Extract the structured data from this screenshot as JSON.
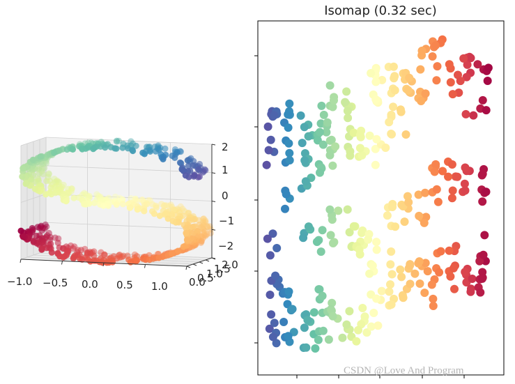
{
  "figure": {
    "watermark": "CSDN @Love And Program"
  },
  "chart_data": [
    {
      "type": "scatter3d",
      "title": "",
      "dataset": "S-curve",
      "colormap": "Spectral",
      "axes": {
        "x": {
          "ticks": [
            -1.0,
            -0.5,
            0.0,
            0.5,
            1.0
          ],
          "tick_labels": [
            "−1.0",
            "−0.5",
            "0.0",
            "0.5",
            "1.0"
          ],
          "range": [
            -1,
            1
          ]
        },
        "y": {
          "ticks": [
            0,
            0.5,
            1.0,
            1.5,
            2.0
          ],
          "tick_labels": [
            "0.0",
            "0.5",
            "1.0",
            "1.5",
            "2.0"
          ],
          "range": [
            0,
            2
          ]
        },
        "z": {
          "ticks": [
            -2,
            -1,
            0,
            1,
            2
          ],
          "tick_labels": [
            "−2",
            "−1",
            "0",
            "1",
            "2"
          ],
          "range": [
            -2,
            2
          ]
        }
      },
      "grid": true
    },
    {
      "type": "scatter",
      "title": "Isomap (0.32 sec)",
      "colormap": "Spectral",
      "x_tick_labels": [],
      "y_tick_labels": [],
      "xlabel": "",
      "ylabel": "",
      "description": "2-D Isomap embedding; color runs violet (left) to red (right)"
    }
  ]
}
